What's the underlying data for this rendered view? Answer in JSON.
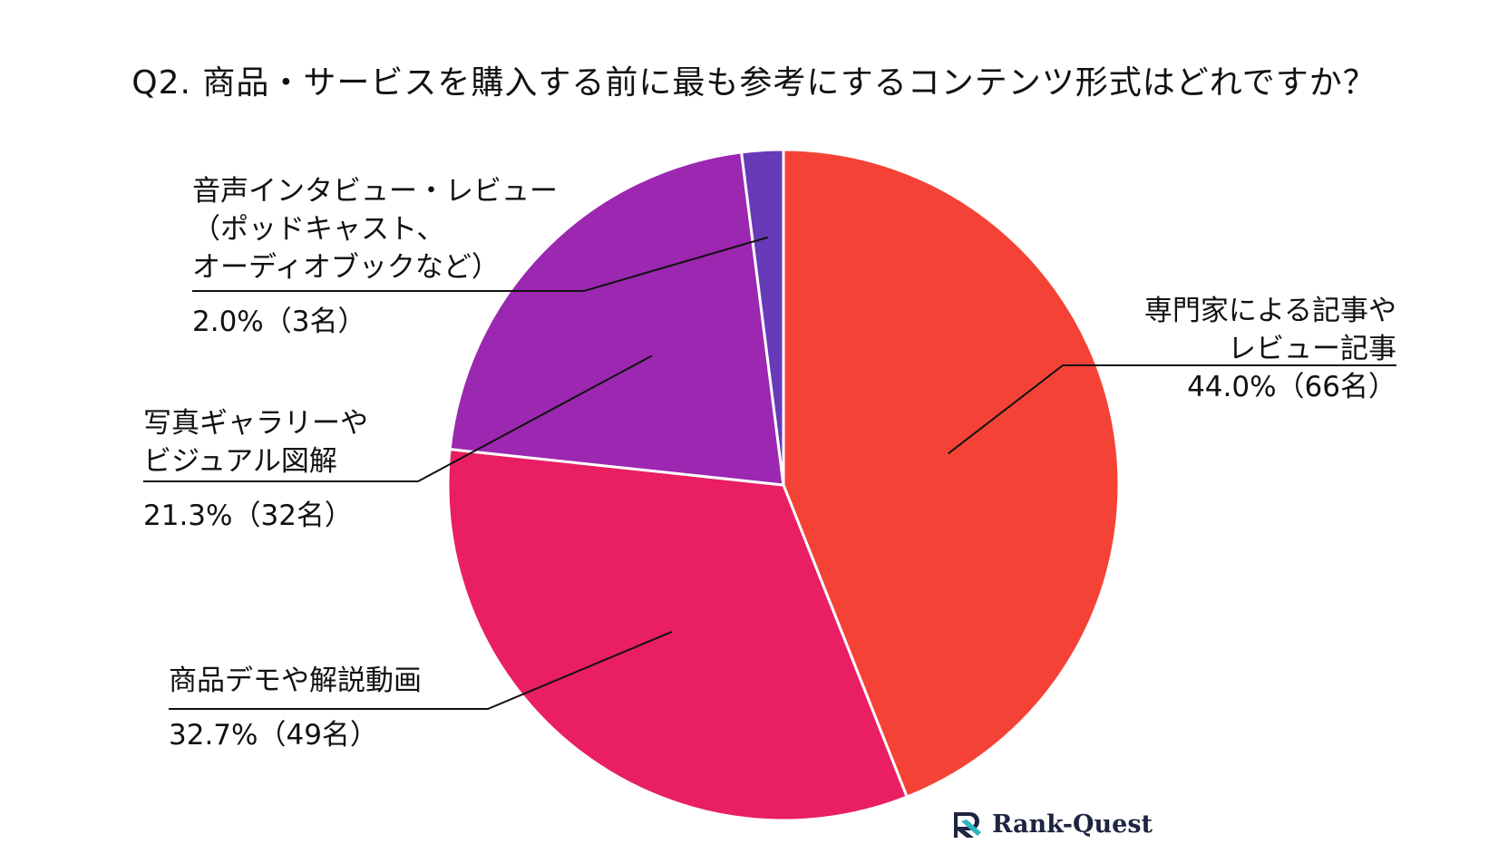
{
  "title": "Q2. 商品・サービスを購入する前に最も参考にするコンテンツ形式はどれですか？",
  "chart_data": {
    "type": "pie",
    "title": "Q2. 商品・サービスを購入する前に最も参考にするコンテンツ形式はどれですか？",
    "slices": [
      {
        "lines": [
          "専門家による記事や",
          "レビュー記事"
        ],
        "value": 44.0,
        "count": 66,
        "value_label": "44.0%（66名）",
        "color": "#f44336"
      },
      {
        "lines": [
          "商品デモや解説動画"
        ],
        "value": 32.7,
        "count": 49,
        "value_label": "32.7%（49名）",
        "color": "#e91e63"
      },
      {
        "lines": [
          "写真ギャラリーや",
          "ビジュアル図解"
        ],
        "value": 21.3,
        "count": 32,
        "value_label": "21.3%（32名）",
        "color": "#9c27b0"
      },
      {
        "lines": [
          "音声インタビュー・レビュー",
          "（ポッドキャスト、",
          "オーディオブックなど）"
        ],
        "value": 2.0,
        "count": 3,
        "value_label": "2.0%（3名）",
        "color": "#673ab7"
      }
    ],
    "start_angle": "12 o'clock",
    "direction": "clockwise"
  },
  "logo": {
    "text": "Rank-Quest",
    "icon": "rank-quest-logo-icon",
    "colors": {
      "mark_dark": "#1d2540",
      "mark_teal": "#2cb5c0"
    }
  }
}
